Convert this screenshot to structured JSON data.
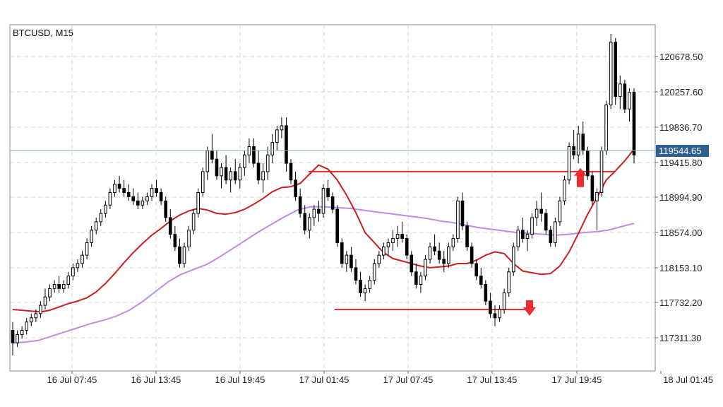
{
  "chart_data": {
    "type": "candlestick",
    "title": "BTCUSD, M15",
    "x_tick_labels": [
      "16 Jul 07:45",
      "16 Jul 13:45",
      "16 Jul 19:45",
      "17 Jul 01:45",
      "17 Jul 07:45",
      "17 Jul 13:45",
      "17 Jul 19:45",
      "18 Jul 01:45"
    ],
    "y_tick_labels": [
      "120678.50",
      "120257.60",
      "119836.70",
      "119415.80",
      "118994.90",
      "118574.00",
      "118153.10",
      "117732.20",
      "117311.30"
    ],
    "ylim": [
      117000,
      121300
    ],
    "current_price": "119544.65",
    "colors": {
      "bull": "#ffffff",
      "bear": "#000000",
      "wick": "#000000",
      "ma_fast": "#cc1f1f",
      "ma_slow": "#c08be6",
      "current_line": "#7fb6a8",
      "price_box": "#2f5f8f",
      "annotation": "#f02c2c"
    },
    "candles": [
      [
        117400,
        117500,
        117100,
        117250
      ],
      [
        117250,
        117400,
        117200,
        117350
      ],
      [
        117350,
        117450,
        117300,
        117400
      ],
      [
        117400,
        117550,
        117350,
        117500
      ],
      [
        117500,
        117600,
        117450,
        117550
      ],
      [
        117550,
        117650,
        117500,
        117600
      ],
      [
        117600,
        117750,
        117550,
        117700
      ],
      [
        117700,
        117900,
        117650,
        117800
      ],
      [
        117800,
        117950,
        117750,
        117900
      ],
      [
        117900,
        118000,
        117850,
        117950
      ],
      [
        117950,
        118050,
        117850,
        117900
      ],
      [
        117900,
        118000,
        117850,
        117950
      ],
      [
        117950,
        118100,
        117900,
        118050
      ],
      [
        118050,
        118200,
        118000,
        118150
      ],
      [
        118150,
        118250,
        118100,
        118200
      ],
      [
        118200,
        118350,
        118150,
        118300
      ],
      [
        118300,
        118500,
        118250,
        118450
      ],
      [
        118450,
        118650,
        118400,
        118600
      ],
      [
        118600,
        118750,
        118550,
        118700
      ],
      [
        118700,
        118850,
        118650,
        118800
      ],
      [
        118800,
        118950,
        118750,
        118900
      ],
      [
        118900,
        119100,
        118850,
        119050
      ],
      [
        119050,
        119200,
        119000,
        119150
      ],
      [
        119150,
        119250,
        119050,
        119100
      ],
      [
        119100,
        119200,
        119000,
        119050
      ],
      [
        119050,
        119150,
        118950,
        119000
      ],
      [
        119000,
        119100,
        118900,
        118950
      ],
      [
        118950,
        119050,
        118850,
        118900
      ],
      [
        118900,
        119000,
        118850,
        118950
      ],
      [
        118950,
        119050,
        118900,
        119000
      ],
      [
        119000,
        119150,
        118950,
        119100
      ],
      [
        119100,
        119200,
        119000,
        119050
      ],
      [
        119050,
        119100,
        118900,
        118950
      ],
      [
        118950,
        119000,
        118700,
        118750
      ],
      [
        118750,
        118850,
        118500,
        118550
      ],
      [
        118550,
        118650,
        118350,
        118400
      ],
      [
        118400,
        118500,
        118150,
        118200
      ],
      [
        118200,
        118450,
        118150,
        118400
      ],
      [
        118400,
        118650,
        118350,
        118600
      ],
      [
        118600,
        118850,
        118550,
        118800
      ],
      [
        118800,
        119100,
        118750,
        119050
      ],
      [
        119050,
        119350,
        119000,
        119300
      ],
      [
        119300,
        119600,
        119200,
        119550
      ],
      [
        119550,
        119750,
        119400,
        119450
      ],
      [
        119450,
        119550,
        119200,
        119250
      ],
      [
        119250,
        119400,
        119100,
        119350
      ],
      [
        119350,
        119500,
        119150,
        119200
      ],
      [
        119200,
        119350,
        119050,
        119300
      ],
      [
        119300,
        119450,
        119150,
        119200
      ],
      [
        119200,
        119400,
        119100,
        119350
      ],
      [
        119350,
        119550,
        119250,
        119500
      ],
      [
        119500,
        119700,
        119400,
        119600
      ],
      [
        119600,
        119700,
        119350,
        119400
      ],
      [
        119400,
        119550,
        119150,
        119200
      ],
      [
        119200,
        119400,
        119050,
        119300
      ],
      [
        119300,
        119600,
        119200,
        119500
      ],
      [
        119500,
        119750,
        119400,
        119650
      ],
      [
        119650,
        119850,
        119550,
        119800
      ],
      [
        119800,
        119950,
        119700,
        119850
      ],
      [
        119850,
        119950,
        119300,
        119400
      ],
      [
        119400,
        119450,
        119150,
        119200
      ],
      [
        119200,
        119300,
        118950,
        119000
      ],
      [
        119000,
        119100,
        118750,
        118800
      ],
      [
        118800,
        118900,
        118550,
        118600
      ],
      [
        118600,
        118800,
        118500,
        118750
      ],
      [
        118750,
        118900,
        118650,
        118850
      ],
      [
        118850,
        118950,
        118700,
        118800
      ],
      [
        118800,
        119150,
        118750,
        119100
      ],
      [
        119100,
        119200,
        118950,
        119000
      ],
      [
        119000,
        119050,
        118800,
        118850
      ],
      [
        118850,
        118900,
        118400,
        118450
      ],
      [
        118450,
        118500,
        118150,
        118200
      ],
      [
        118200,
        118350,
        118100,
        118300
      ],
      [
        118300,
        118400,
        118100,
        118150
      ],
      [
        118150,
        118250,
        117950,
        118000
      ],
      [
        118000,
        118100,
        117800,
        117850
      ],
      [
        117850,
        117950,
        117750,
        117900
      ],
      [
        117900,
        118050,
        117850,
        118000
      ],
      [
        118000,
        118250,
        117950,
        118200
      ],
      [
        118200,
        118350,
        118150,
        118300
      ],
      [
        118300,
        118450,
        118250,
        118400
      ],
      [
        118400,
        118500,
        118300,
        118450
      ],
      [
        118450,
        118600,
        118350,
        118500
      ],
      [
        118500,
        118650,
        118400,
        118550
      ],
      [
        118550,
        118700,
        118450,
        118500
      ],
      [
        118500,
        118550,
        118250,
        118300
      ],
      [
        118300,
        118350,
        118050,
        118100
      ],
      [
        118100,
        118200,
        117900,
        117950
      ],
      [
        117950,
        118100,
        117850,
        118050
      ],
      [
        118050,
        118300,
        118000,
        118250
      ],
      [
        118250,
        118450,
        118200,
        118400
      ],
      [
        118400,
        118550,
        118300,
        118350
      ],
      [
        118350,
        118450,
        118200,
        118250
      ],
      [
        118250,
        118350,
        118100,
        118200
      ],
      [
        118200,
        118450,
        118150,
        118400
      ],
      [
        118400,
        118550,
        118350,
        118500
      ],
      [
        118500,
        119000,
        118450,
        118950
      ],
      [
        118950,
        119050,
        118600,
        118650
      ],
      [
        118650,
        118700,
        118350,
        118400
      ],
      [
        118400,
        118450,
        118150,
        118200
      ],
      [
        118200,
        118250,
        118000,
        118050
      ],
      [
        118050,
        118150,
        117900,
        117950
      ],
      [
        117950,
        118000,
        117700,
        117750
      ],
      [
        117750,
        117850,
        117550,
        117600
      ],
      [
        117600,
        117700,
        117450,
        117550
      ],
      [
        117550,
        117700,
        117500,
        117650
      ],
      [
        117650,
        117900,
        117600,
        117850
      ],
      [
        117850,
        118150,
        117800,
        118100
      ],
      [
        118100,
        118450,
        118050,
        118400
      ],
      [
        118400,
        118650,
        118350,
        118600
      ],
      [
        118600,
        118750,
        118450,
        118500
      ],
      [
        118500,
        118600,
        118350,
        118550
      ],
      [
        118550,
        118800,
        118500,
        118750
      ],
      [
        118750,
        118950,
        118650,
        118850
      ],
      [
        118850,
        119050,
        118700,
        118800
      ],
      [
        118800,
        118850,
        118550,
        118600
      ],
      [
        118600,
        118650,
        118400,
        118450
      ],
      [
        118450,
        118750,
        118400,
        118700
      ],
      [
        118700,
        119000,
        118650,
        118950
      ],
      [
        118950,
        119250,
        118900,
        119200
      ],
      [
        119200,
        119650,
        119150,
        119600
      ],
      [
        119600,
        119800,
        119450,
        119500
      ],
      [
        119500,
        119850,
        119400,
        119750
      ],
      [
        119750,
        119900,
        119500,
        119550
      ],
      [
        119550,
        119600,
        119200,
        119250
      ],
      [
        119250,
        119300,
        118900,
        118950
      ],
      [
        118950,
        119100,
        118600,
        119050
      ],
      [
        119050,
        119600,
        119000,
        119550
      ],
      [
        119550,
        120150,
        119500,
        120100
      ],
      [
        120100,
        120950,
        120050,
        120850
      ],
      [
        120850,
        120900,
        120100,
        120200
      ],
      [
        120200,
        120450,
        120050,
        120350
      ],
      [
        120350,
        120400,
        120000,
        120050
      ],
      [
        120050,
        120300,
        119900,
        120250
      ],
      [
        120250,
        120300,
        119400,
        119500
      ]
    ],
    "ma_fast": [
      117650,
      117640,
      117630,
      117620,
      117640,
      117680,
      117720,
      117750,
      117790,
      117860,
      117960,
      118080,
      118210,
      118330,
      118440,
      118540,
      118620,
      118710,
      118780,
      118830,
      118860,
      118840,
      118800,
      118790,
      118810,
      118850,
      118910,
      118980,
      119060,
      119110,
      119120,
      119160,
      119270,
      119380,
      119330,
      119200,
      119020,
      118810,
      118570,
      118450,
      118330,
      118260,
      118230,
      118200,
      118170,
      118150,
      118160,
      118170,
      118200,
      118200,
      118240,
      118300,
      118340,
      118320,
      118200,
      118110,
      118090,
      118070,
      118080,
      118170,
      118340,
      118560,
      118790,
      118990,
      119200,
      119310,
      119430,
      119570
    ],
    "ma_slow": [
      117250,
      117260,
      117280,
      117330,
      117380,
      117430,
      117480,
      117520,
      117570,
      117640,
      117740,
      117860,
      117980,
      118070,
      118130,
      118190,
      118280,
      118380,
      118480,
      118580,
      118670,
      118760,
      118840,
      118880,
      118880,
      118870,
      118860,
      118840,
      118820,
      118800,
      118780,
      118760,
      118740,
      118710,
      118690,
      118660,
      118630,
      118610,
      118590,
      118570,
      118560,
      118550,
      118540,
      118550,
      118570,
      118580,
      118600,
      118640,
      118680
    ],
    "annotations": {
      "upper_level": 119300,
      "lower_level": 117650,
      "up_arrow_price": 119200,
      "down_arrow_price": 117650
    }
  }
}
